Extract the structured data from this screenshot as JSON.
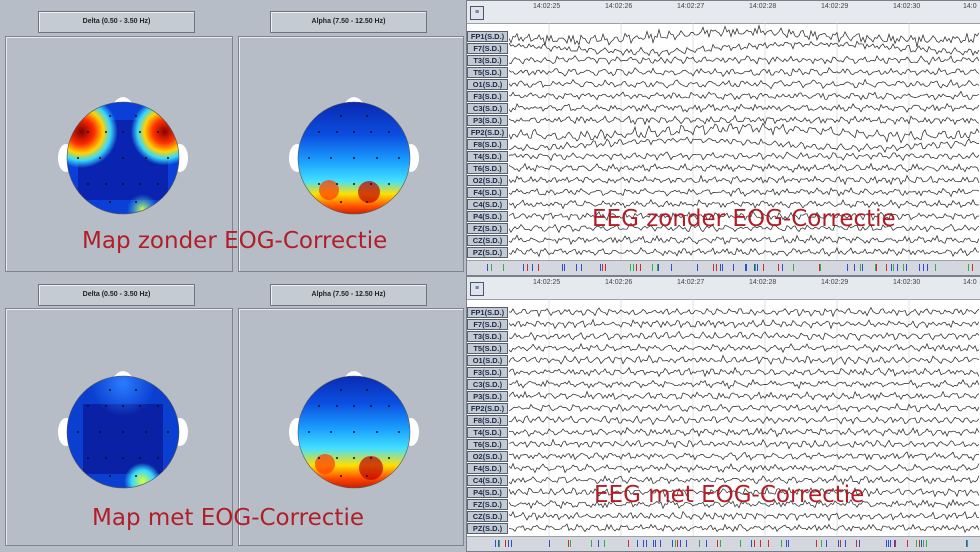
{
  "top_panel": {
    "band_titles": [
      "Delta (0.50 - 3.50 Hz)",
      "Alpha (7.50 - 12.50 Hz)"
    ],
    "map_caption": "Map zonder EOG-Correctie",
    "eeg_caption": "EEG zonder EOG-Correctie"
  },
  "bottom_panel": {
    "band_titles": [
      "Delta (0.50 - 3.50 Hz)",
      "Alpha (7.50 - 12.50 Hz)"
    ],
    "map_caption": "Map met EOG-Correctie",
    "eeg_caption": "EEG met EOG-Correctie"
  },
  "time_ticks": [
    "14:02:25",
    "14:02:26",
    "14:02:27",
    "14:02:28",
    "14:02:29",
    "14:02:30",
    "14:0"
  ],
  "channels": [
    "FP1(S.D.)",
    "F7(S.D.)",
    "T3(S.D.)",
    "T5(S.D.)",
    "O1(S.D.)",
    "F3(S.D.)",
    "C3(S.D.)",
    "P3(S.D.)",
    "FP2(S.D.)",
    "F8(S.D.)",
    "T4(S.D.)",
    "T6(S.D.)",
    "O2(S.D.)",
    "F4(S.D.)",
    "C4(S.D.)",
    "P4(S.D.)",
    "FZ(S.D.)",
    "CZ(S.D.)",
    "PZ(S.D.)"
  ],
  "menu_icon": "menu-icon",
  "colors": {
    "caption": "#b21e28",
    "panel": "#b6bdc7",
    "label": "#c3cad3",
    "trace": "#222222"
  }
}
